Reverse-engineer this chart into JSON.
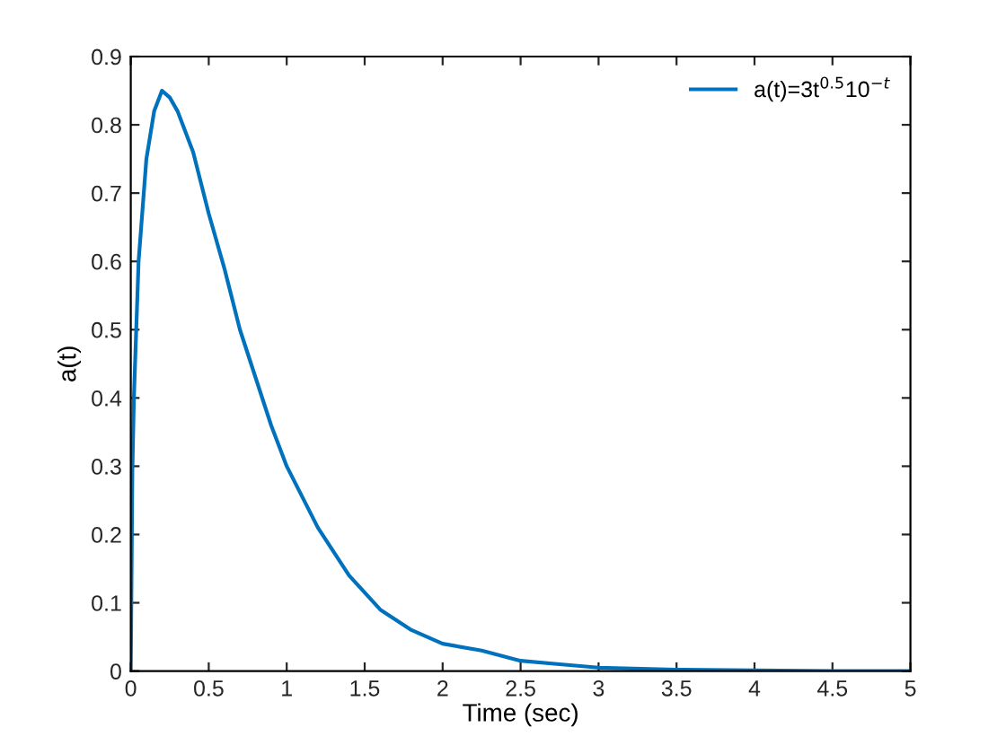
{
  "chart_data": {
    "type": "line",
    "xlabel": "Time (sec)",
    "ylabel": "a(t)",
    "series": [
      {
        "name": "a(t)=3t$^{0.5}$10$^{−t}$",
        "color": "#0072bd",
        "x": [
          0,
          0.01,
          0.02,
          0.05,
          0.1,
          0.15,
          0.2,
          0.25,
          0.3,
          0.4,
          0.5,
          0.6,
          0.7,
          0.8,
          0.9,
          1.0,
          1.2,
          1.4,
          1.6,
          1.8,
          2.0,
          2.25,
          2.5,
          2.75,
          3,
          3.5,
          4,
          4.5,
          5
        ],
        "values": [
          0,
          0.29,
          0.4,
          0.6,
          0.75,
          0.82,
          0.85,
          0.84,
          0.82,
          0.76,
          0.67,
          0.59,
          0.5,
          0.43,
          0.36,
          0.3,
          0.21,
          0.14,
          0.09,
          0.06,
          0.04,
          0.03,
          0.015,
          0.01,
          0.005,
          0.002,
          0.001,
          0,
          0
        ]
      }
    ],
    "xlim": [
      0,
      5
    ],
    "ylim": [
      0,
      0.9
    ],
    "xticks": [
      0,
      0.5,
      1,
      1.5,
      2,
      2.5,
      3,
      3.5,
      4,
      4.5,
      5
    ],
    "yticks": [
      0,
      0.1,
      0.2,
      0.3,
      0.4,
      0.5,
      0.6,
      0.7,
      0.8,
      0.9
    ],
    "grid": false,
    "legend": "top right",
    "marker": "none",
    "line_style": "solid"
  }
}
